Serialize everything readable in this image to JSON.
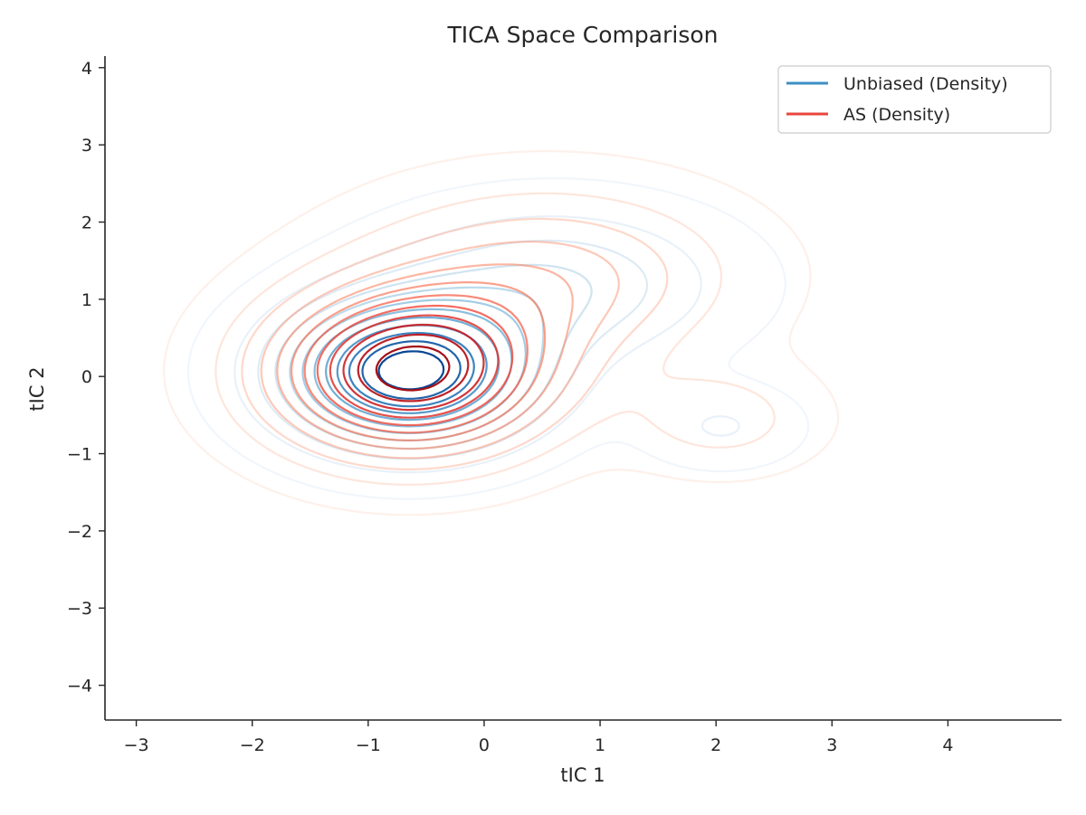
{
  "chart_data": {
    "type": "contour",
    "title": "TICA Space Comparison",
    "xlabel": "tIC 1",
    "ylabel": "tIC 2",
    "xlim": [
      -3.27,
      4.98
    ],
    "ylim": [
      -4.45,
      4.15
    ],
    "x_ticks": [
      -3,
      -2,
      -1,
      0,
      1,
      2,
      3,
      4
    ],
    "y_ticks": [
      -4,
      -3,
      -2,
      -1,
      0,
      1,
      2,
      3,
      4
    ],
    "x_tick_labels": [
      "−3",
      "−2",
      "−1",
      "0",
      "1",
      "2",
      "3",
      "4"
    ],
    "y_tick_labels": [
      "−4",
      "−3",
      "−2",
      "−1",
      "0",
      "1",
      "2",
      "3",
      "4"
    ],
    "grid": false,
    "legend_position": "top-right",
    "series": [
      {
        "name": "Unbiased (Density)",
        "legend_color": "#3d8fc4",
        "colormap": "Blues",
        "peaks": [
          {
            "x": -0.65,
            "y": 0.05,
            "weight": 1.0,
            "sx": 0.72,
            "sy": 0.62
          },
          {
            "x": 2.05,
            "y": -0.65,
            "weight": 0.12,
            "sx": 0.45,
            "sy": 0.35
          },
          {
            "x": 0.6,
            "y": 1.2,
            "weight": 0.28,
            "sx": 0.95,
            "sy": 0.65
          }
        ],
        "levels": 12
      },
      {
        "name": "AS (Density)",
        "legend_color": "#e8453c",
        "colormap": "Reds",
        "peaks": [
          {
            "x": -0.65,
            "y": 0.05,
            "weight": 1.0,
            "sx": 0.8,
            "sy": 0.7
          },
          {
            "x": 2.05,
            "y": -0.55,
            "weight": 0.16,
            "sx": 0.55,
            "sy": 0.45
          },
          {
            "x": 0.55,
            "y": 1.3,
            "weight": 0.32,
            "sx": 1.05,
            "sy": 0.75
          }
        ],
        "levels": 12
      }
    ]
  }
}
